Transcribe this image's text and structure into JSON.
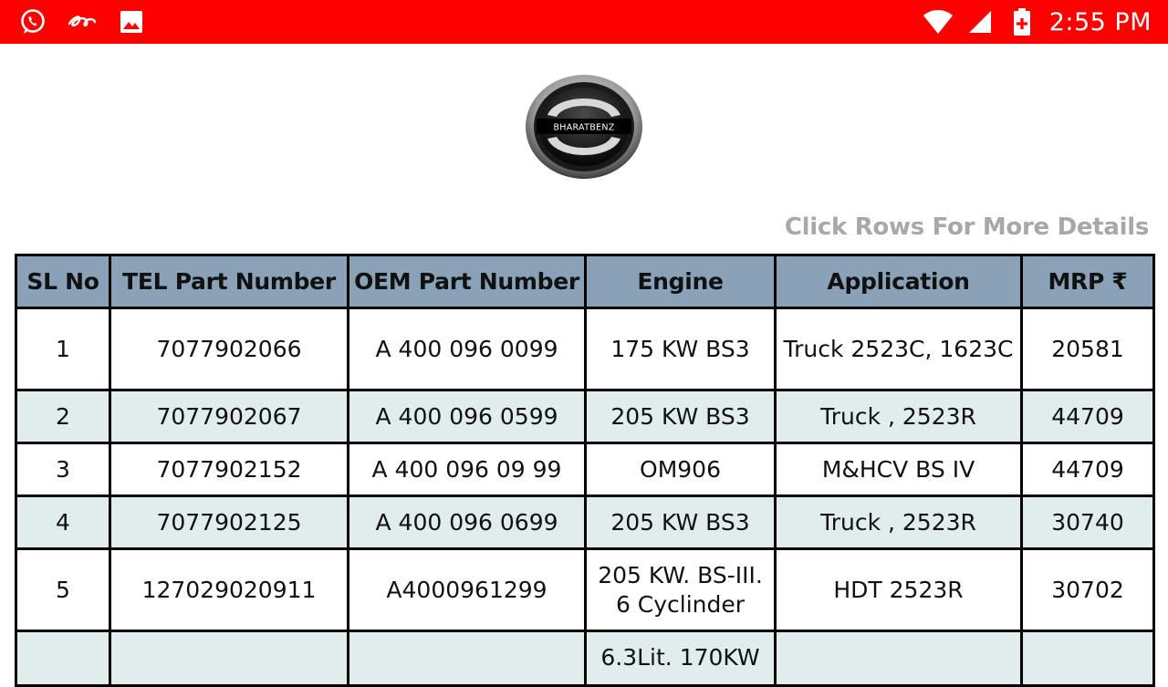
{
  "status_bar": {
    "time": "2:55 PM",
    "left_icons": [
      "whatsapp-icon",
      "app-notification-icon",
      "image-icon"
    ],
    "right_icons": [
      "wifi-icon",
      "cellular-signal-icon",
      "battery-charging-icon"
    ],
    "background": "#ff0000"
  },
  "logo": {
    "brand": "BHARATBENZ"
  },
  "hint": "Click Rows For More Details",
  "table": {
    "headers": [
      "SL No",
      "TEL Part Number",
      "OEM Part Number",
      "Engine",
      "Application",
      "MRP ₹"
    ],
    "header_color": "#8aa2b8",
    "alt_row_color": "#e1eced",
    "rows": [
      {
        "sl": "1",
        "tel": "7077902066",
        "oem": "A 400 096 0099",
        "engine": "175 KW BS3",
        "application": "Truck 2523C, 1623C",
        "mrp": "20581"
      },
      {
        "sl": "2",
        "tel": "7077902067",
        "oem": "A 400 096 0599",
        "engine": "205 KW BS3",
        "application": "Truck , 2523R",
        "mrp": "44709"
      },
      {
        "sl": "3",
        "tel": "7077902152",
        "oem": "A 400 096 09 99",
        "engine": "OM906",
        "application": "M&HCV BS IV",
        "mrp": "44709"
      },
      {
        "sl": "4",
        "tel": "7077902125",
        "oem": "A 400 096 0699",
        "engine": "205 KW BS3",
        "application": "Truck , 2523R",
        "mrp": "30740"
      },
      {
        "sl": "5",
        "tel": "127029020911",
        "oem": "A4000961299",
        "engine": "205 KW. BS-III. 6 Cyclinder",
        "application": "HDT 2523R",
        "mrp": "30702"
      },
      {
        "sl": "",
        "tel": "",
        "oem": "",
        "engine": "6.3Lit. 170KW",
        "application": "",
        "mrp": ""
      }
    ]
  }
}
